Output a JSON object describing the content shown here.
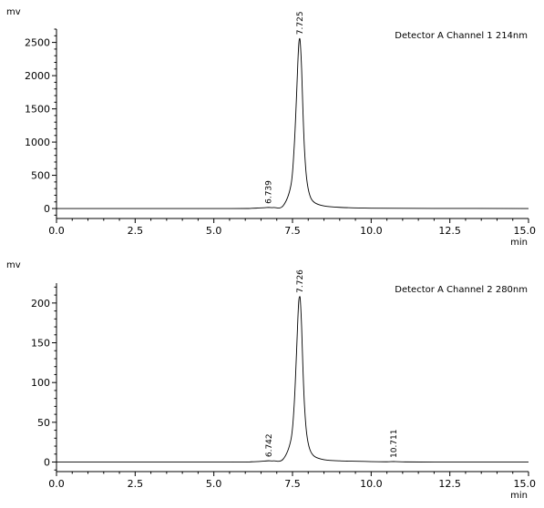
{
  "chart_data": [
    {
      "type": "line",
      "title": "Detector A Channel 1 214nm",
      "ylabel": "mv",
      "xlabel": "min",
      "xlim": [
        0,
        15
      ],
      "ylim": [
        -150,
        2700
      ],
      "xticks": [
        0,
        2.5,
        5,
        7.5,
        10,
        12.5,
        15
      ],
      "xtick_labels": [
        "0.0",
        "2.5",
        "5.0",
        "7.5",
        "10.0",
        "12.5",
        "15.0"
      ],
      "yticks": [
        0,
        500,
        1000,
        1500,
        2000,
        2500
      ],
      "ytick_labels": [
        "0",
        "500",
        "1000",
        "1500",
        "2000",
        "2500"
      ],
      "grid": false,
      "series": [
        {
          "color": "#000000",
          "x": [
            0,
            5.5,
            6.2,
            6.6,
            6.739,
            6.9,
            7.2,
            7.45,
            7.55,
            7.62,
            7.67,
            7.7,
            7.725,
            7.75,
            7.79,
            7.83,
            7.88,
            7.95,
            8.05,
            8.2,
            8.5,
            9.0,
            10.0,
            12.0,
            15.0
          ],
          "y": [
            0,
            0,
            3,
            12,
            16,
            15,
            40,
            350,
            900,
            1600,
            2200,
            2480,
            2560,
            2480,
            2100,
            1500,
            900,
            450,
            200,
            90,
            40,
            18,
            5,
            2,
            0
          ]
        }
      ],
      "peak_labels": [
        {
          "x": 6.739,
          "y": 16,
          "label": "6.739"
        },
        {
          "x": 7.725,
          "y": 2560,
          "label": "7.725"
        }
      ]
    },
    {
      "type": "line",
      "title": "Detector A Channel 2 280nm",
      "ylabel": "mv",
      "xlabel": "min",
      "xlim": [
        0,
        15
      ],
      "ylim": [
        -12,
        225
      ],
      "xticks": [
        0,
        2.5,
        5,
        7.5,
        10,
        12.5,
        15
      ],
      "xtick_labels": [
        "0.0",
        "2.5",
        "5.0",
        "7.5",
        "10.0",
        "12.5",
        "15.0"
      ],
      "yticks": [
        0,
        50,
        100,
        150,
        200
      ],
      "ytick_labels": [
        "0",
        "50",
        "100",
        "150",
        "200"
      ],
      "grid": false,
      "series": [
        {
          "color": "#000000",
          "x": [
            0,
            5.5,
            6.2,
            6.6,
            6.742,
            6.9,
            7.2,
            7.45,
            7.55,
            7.62,
            7.67,
            7.7,
            7.726,
            7.75,
            7.79,
            7.83,
            7.88,
            7.95,
            8.05,
            8.2,
            8.5,
            9.0,
            10.0,
            10.5,
            10.711,
            11.0,
            12.0,
            15.0
          ],
          "y": [
            0,
            0,
            0.3,
            1.2,
            1.6,
            1.5,
            3.5,
            28,
            70,
            130,
            180,
            203,
            208,
            203,
            170,
            120,
            72,
            36,
            16,
            7,
            3,
            1.5,
            0.5,
            0.3,
            0.6,
            0.2,
            0,
            0
          ]
        }
      ],
      "peak_labels": [
        {
          "x": 6.742,
          "y": 1.6,
          "label": "6.742"
        },
        {
          "x": 7.726,
          "y": 208,
          "label": "7.726"
        },
        {
          "x": 10.711,
          "y": 0.6,
          "label": "10.711"
        }
      ]
    }
  ]
}
